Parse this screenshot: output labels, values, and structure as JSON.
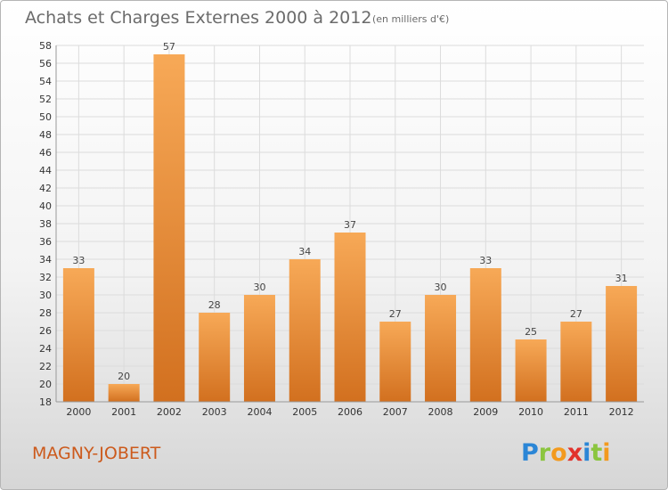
{
  "header": {
    "title": "Achats et Charges Externes 2000 à 2012",
    "subtitle": "(en milliers d'€)"
  },
  "footer": {
    "commune": "MAGNY-JOBERT",
    "logo_text": "Proxiti"
  },
  "colors": {
    "bar_light": "#f7a957",
    "bar_dark": "#d2701f",
    "grid": "#dcdcdc",
    "commune": "#cc5a1c"
  },
  "chart_data": {
    "type": "bar",
    "categories": [
      "2000",
      "2001",
      "2002",
      "2003",
      "2004",
      "2005",
      "2006",
      "2007",
      "2008",
      "2009",
      "2010",
      "2011",
      "2012"
    ],
    "values": [
      33,
      20,
      57,
      28,
      30,
      34,
      37,
      27,
      30,
      33,
      25,
      27,
      31
    ],
    "title": "Achats et Charges Externes 2000 à 2012",
    "subtitle": "(en milliers d'€)",
    "xlabel": "",
    "ylabel": "",
    "ylim": [
      18,
      58
    ],
    "yticks": [
      18,
      20,
      22,
      24,
      26,
      28,
      30,
      32,
      34,
      36,
      38,
      40,
      42,
      44,
      46,
      48,
      50,
      52,
      54,
      56,
      58
    ],
    "grid": true,
    "legend": "none"
  }
}
